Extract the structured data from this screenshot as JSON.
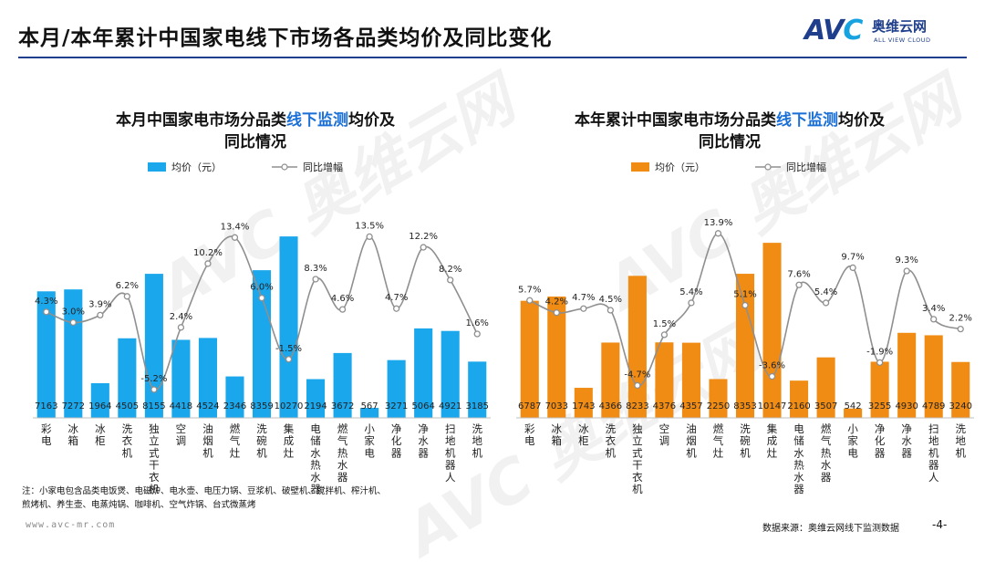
{
  "page": {
    "title": "本月/本年累计中国家电线下市场各品类均价及同比变化",
    "logo_mark": "AVC",
    "logo_cn": "奥维云网",
    "logo_en": "ALL VIEW CLOUD",
    "footnote_line1": "注：小家电包含品类电饭煲、电磁炉、电水壶、电压力锅、豆浆机、破壁机、搅拌机、榨汁机、",
    "footnote_line2": "煎烤机、养生壶、电蒸炖锅、咖啡机、空气炸锅、台式微蒸烤",
    "website": "www.avc-mr.com",
    "source": "数据来源：奥维云网线下监测数据",
    "page_number": "-4-",
    "watermark": "AVC 奥维云网"
  },
  "colors": {
    "brand": "#1f3f8c",
    "left_bar": "#1aa7ec",
    "right_bar": "#f08c14",
    "line": "#8f8f8f"
  },
  "chart_data": [
    {
      "type": "bar",
      "title_pre": "本月中国家电市场分品类",
      "title_highlight": "线下监测",
      "title_post": "均价及",
      "title_line2": "同比情况",
      "legend_bar": "均价（元）",
      "legend_line": "同比增幅",
      "categories": [
        "彩电",
        "冰箱",
        "冰柜",
        "洗衣机",
        "独立式干衣机",
        "空调",
        "油烟机",
        "燃气灶",
        "洗碗机",
        "集成灶",
        "电储水热水器",
        "燃气热水器",
        "小家电",
        "净化器",
        "净水器",
        "扫地机器人",
        "洗地机"
      ],
      "values": [
        7163,
        7272,
        1964,
        4505,
        8155,
        4418,
        4524,
        2346,
        8359,
        10270,
        2194,
        3672,
        567,
        3271,
        5064,
        4921,
        3185
      ],
      "growth_labels": [
        "4.3%",
        "3.0%",
        "3.9%",
        "6.2%",
        "-5.2%",
        "2.4%",
        "10.2%",
        "13.4%",
        "6.0%",
        "-1.5%",
        "8.3%",
        "4.6%",
        "13.5%",
        "4.7%",
        "12.2%",
        "8.2%",
        "1.6%"
      ],
      "growth": [
        4.3,
        3.0,
        3.9,
        6.2,
        -5.2,
        2.4,
        10.2,
        13.4,
        6.0,
        -1.5,
        8.3,
        4.6,
        13.5,
        4.7,
        12.2,
        8.2,
        1.6
      ]
    },
    {
      "type": "bar",
      "title_pre": "本年累计中国家电市场分品类",
      "title_highlight": "线下监测",
      "title_post": "均价及",
      "title_line2": "同比情况",
      "legend_bar": "均价（元）",
      "legend_line": "同比增幅",
      "categories": [
        "彩电",
        "冰箱",
        "冰柜",
        "洗衣机",
        "独立式干衣机",
        "空调",
        "油烟机",
        "燃气灶",
        "洗碗机",
        "集成灶",
        "电储水热水器",
        "燃气热水器",
        "小家电",
        "净化器",
        "净水器",
        "扫地机器人",
        "洗地机"
      ],
      "values": [
        6787,
        7033,
        1743,
        4366,
        8233,
        4376,
        4357,
        2250,
        8353,
        10147,
        2160,
        3507,
        542,
        3255,
        4930,
        4789,
        3240
      ],
      "growth_labels": [
        "5.7%",
        "4.2%",
        "4.7%",
        "4.5%",
        "-4.7%",
        "1.5%",
        "5.4%",
        "13.9%",
        "5.1%",
        "-3.6%",
        "7.6%",
        "5.4%",
        "9.7%",
        "-1.9%",
        "9.3%",
        "3.4%",
        "2.2%"
      ],
      "growth": [
        5.7,
        4.2,
        4.7,
        4.5,
        -4.7,
        1.5,
        5.4,
        13.9,
        5.1,
        -3.6,
        7.6,
        5.4,
        9.7,
        -1.9,
        9.3,
        3.4,
        2.2
      ]
    }
  ]
}
